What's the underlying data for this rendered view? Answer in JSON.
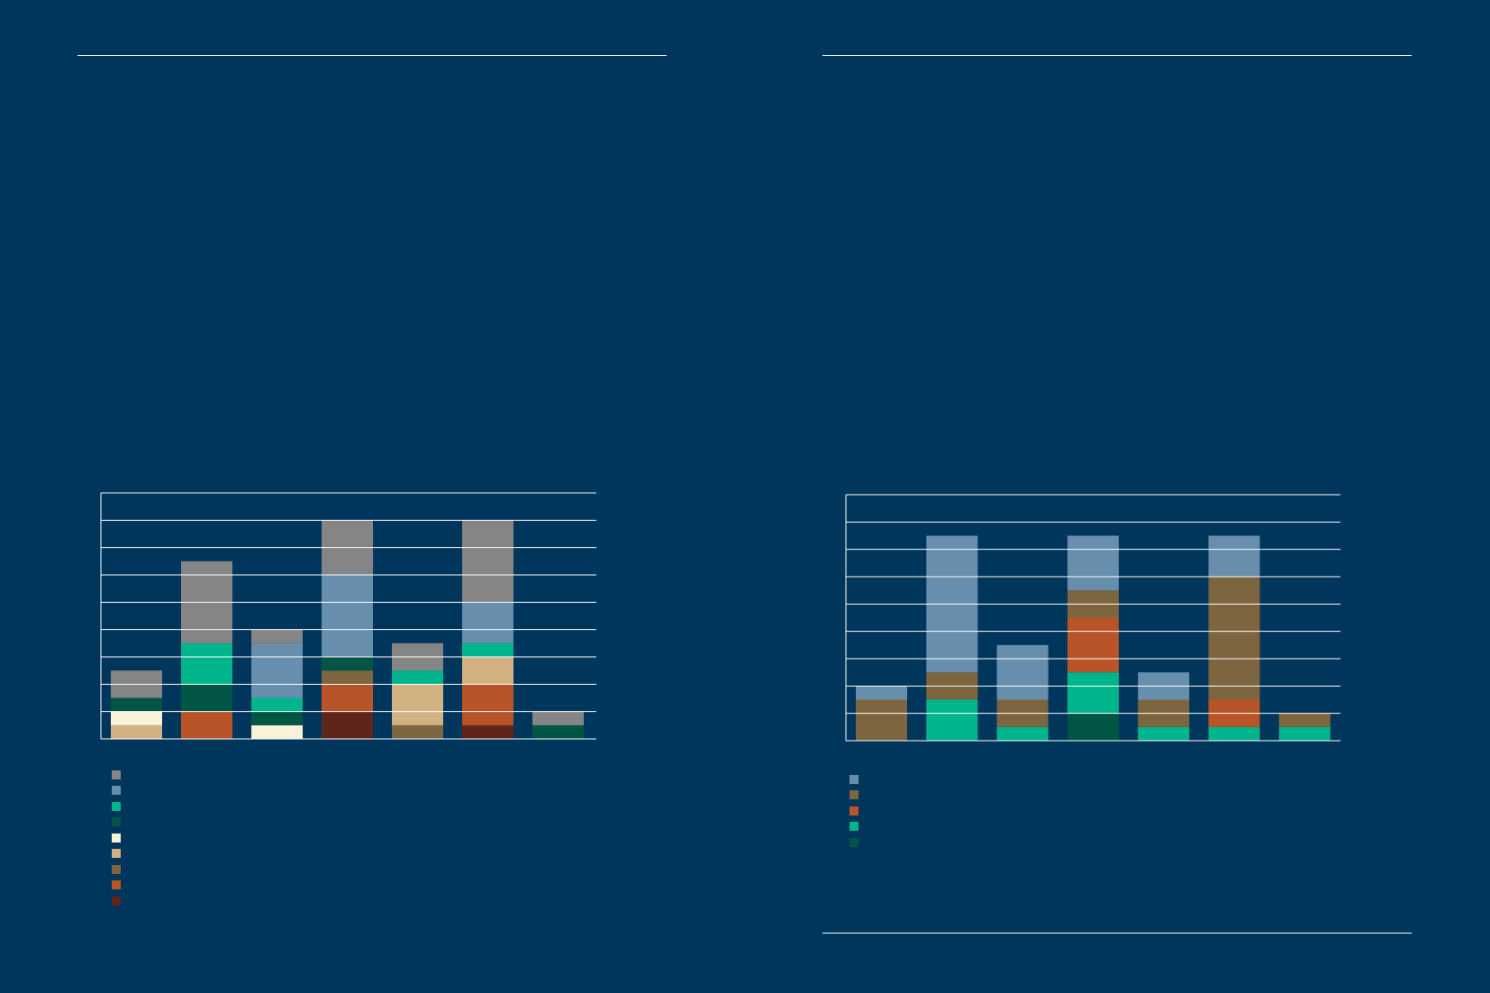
{
  "chart_data": [
    {
      "type": "bar",
      "stacked": true,
      "grid": true,
      "ylim": [
        0,
        9
      ],
      "categories": [
        "",
        "",
        "",
        "",
        "",
        "",
        ""
      ],
      "series": [
        {
          "color": "#60251a",
          "values": [
            0,
            0,
            0,
            1,
            0,
            0.5,
            0
          ]
        },
        {
          "color": "#b85427",
          "values": [
            0,
            1,
            0,
            1,
            0,
            1.5,
            0
          ]
        },
        {
          "color": "#7d653f",
          "values": [
            0,
            0,
            0,
            0.5,
            0.5,
            0,
            0
          ]
        },
        {
          "color": "#d2b283",
          "values": [
            0.5,
            0,
            0,
            0,
            1.5,
            1,
            0
          ]
        },
        {
          "color": "#f7f2d8",
          "values": [
            0.5,
            0,
            0.5,
            0,
            0,
            0,
            0
          ]
        },
        {
          "color": "#005544",
          "values": [
            0.5,
            1,
            0.5,
            0.5,
            0,
            0,
            0.5
          ]
        },
        {
          "color": "#00b58c",
          "values": [
            0,
            1.5,
            0.5,
            0,
            0.5,
            0.5,
            0
          ]
        },
        {
          "color": "#678fad",
          "values": [
            0,
            0,
            2,
            3,
            0,
            1.5,
            0
          ]
        },
        {
          "color": "#858585",
          "values": [
            1,
            3,
            0.5,
            2,
            1,
            3,
            0.5
          ]
        }
      ]
    },
    {
      "type": "bar",
      "stacked": true,
      "grid": true,
      "ylim": [
        0,
        9
      ],
      "categories": [
        "",
        "",
        "",
        "",
        "",
        "",
        ""
      ],
      "series": [
        {
          "color": "#005544",
          "values": [
            0,
            0,
            0,
            1,
            0,
            0,
            0
          ]
        },
        {
          "color": "#00b58c",
          "values": [
            0,
            1.5,
            0.5,
            1.5,
            0.5,
            0.5,
            0.5
          ]
        },
        {
          "color": "#b85427",
          "values": [
            0,
            0,
            0,
            2,
            0,
            1,
            0
          ]
        },
        {
          "color": "#7d653f",
          "values": [
            1.5,
            1,
            1,
            1,
            1,
            4.5,
            0.5
          ]
        },
        {
          "color": "#678fad",
          "values": [
            0.5,
            5,
            2,
            2,
            1,
            1.5,
            0
          ]
        }
      ]
    }
  ]
}
